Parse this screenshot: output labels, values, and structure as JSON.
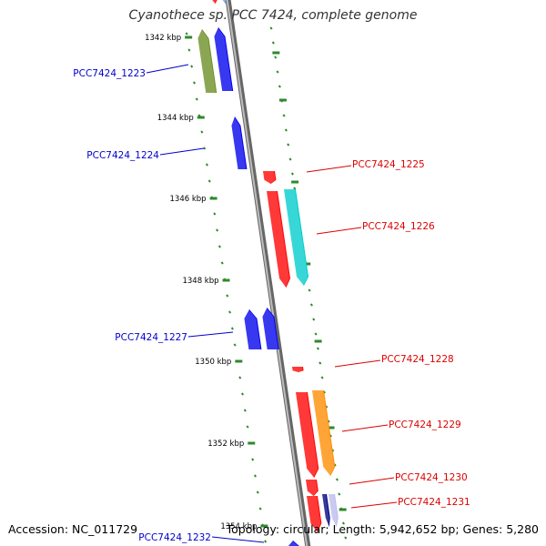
{
  "title": "Cyanothece sp. PCC 7424, complete genome",
  "footer": {
    "accession": "Accession: NC_011729",
    "topology": "Topology: circular; Length: 5,942,652 bp; Genes: 5,280"
  },
  "colors": {
    "forward_label": "#0000cc",
    "reverse_label": "#dd0000",
    "backbone": "#888888",
    "tick": "#2d8a2d",
    "olive": "#6b8e23",
    "blue": "#0000ee",
    "red": "#ff0000",
    "cyan": "#00cccc",
    "orange": "#ff8c00",
    "navy": "#000080",
    "lavender": "#bbbbee",
    "steel": "#6699cc"
  },
  "scale_labels": [
    "1342 kbp",
    "1344 kbp",
    "1346 kbp",
    "1348 kbp",
    "1350 kbp",
    "1352 kbp",
    "1354 kbp"
  ],
  "genes": [
    {
      "id": "PCC7424_1223",
      "strand": "forward",
      "color": "olive"
    },
    {
      "id": "PCC7424_1224",
      "strand": "forward",
      "color": "blue"
    },
    {
      "id": "PCC7424_1225",
      "strand": "reverse",
      "color": "red"
    },
    {
      "id": "PCC7424_1226",
      "strand": "reverse",
      "color": "cyan"
    },
    {
      "id": "PCC7424_1227",
      "strand": "forward",
      "color": "blue"
    },
    {
      "id": "PCC7424_1228",
      "strand": "reverse",
      "color": "red"
    },
    {
      "id": "PCC7424_1229",
      "strand": "reverse",
      "color": "orange"
    },
    {
      "id": "PCC7424_1230",
      "strand": "reverse",
      "color": "red"
    },
    {
      "id": "PCC7424_1231",
      "strand": "reverse",
      "color": "red"
    },
    {
      "id": "PCC7424_1232",
      "strand": "forward",
      "color": "blue"
    }
  ]
}
